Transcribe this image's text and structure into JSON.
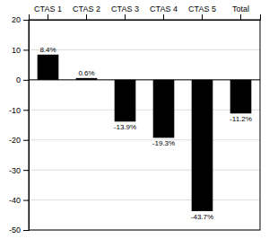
{
  "chart_data": {
    "type": "bar",
    "categories": [
      "CTAS 1",
      "CTAS 2",
      "CTAS 3",
      "CTAS 4",
      "CTAS 5",
      "Total"
    ],
    "values": [
      8.4,
      0.6,
      -13.9,
      -19.3,
      -43.7,
      -11.2
    ],
    "value_labels": [
      "8.4%",
      "0.6%",
      "-13.9%",
      "-19.3%",
      "-43.7%",
      "-11.2%"
    ],
    "color": "#000000",
    "ylim": [
      -50,
      20
    ],
    "yticks": [
      -50,
      -40,
      -30,
      -20,
      -10,
      0,
      10,
      20
    ],
    "grid": true,
    "data_labels": true
  }
}
